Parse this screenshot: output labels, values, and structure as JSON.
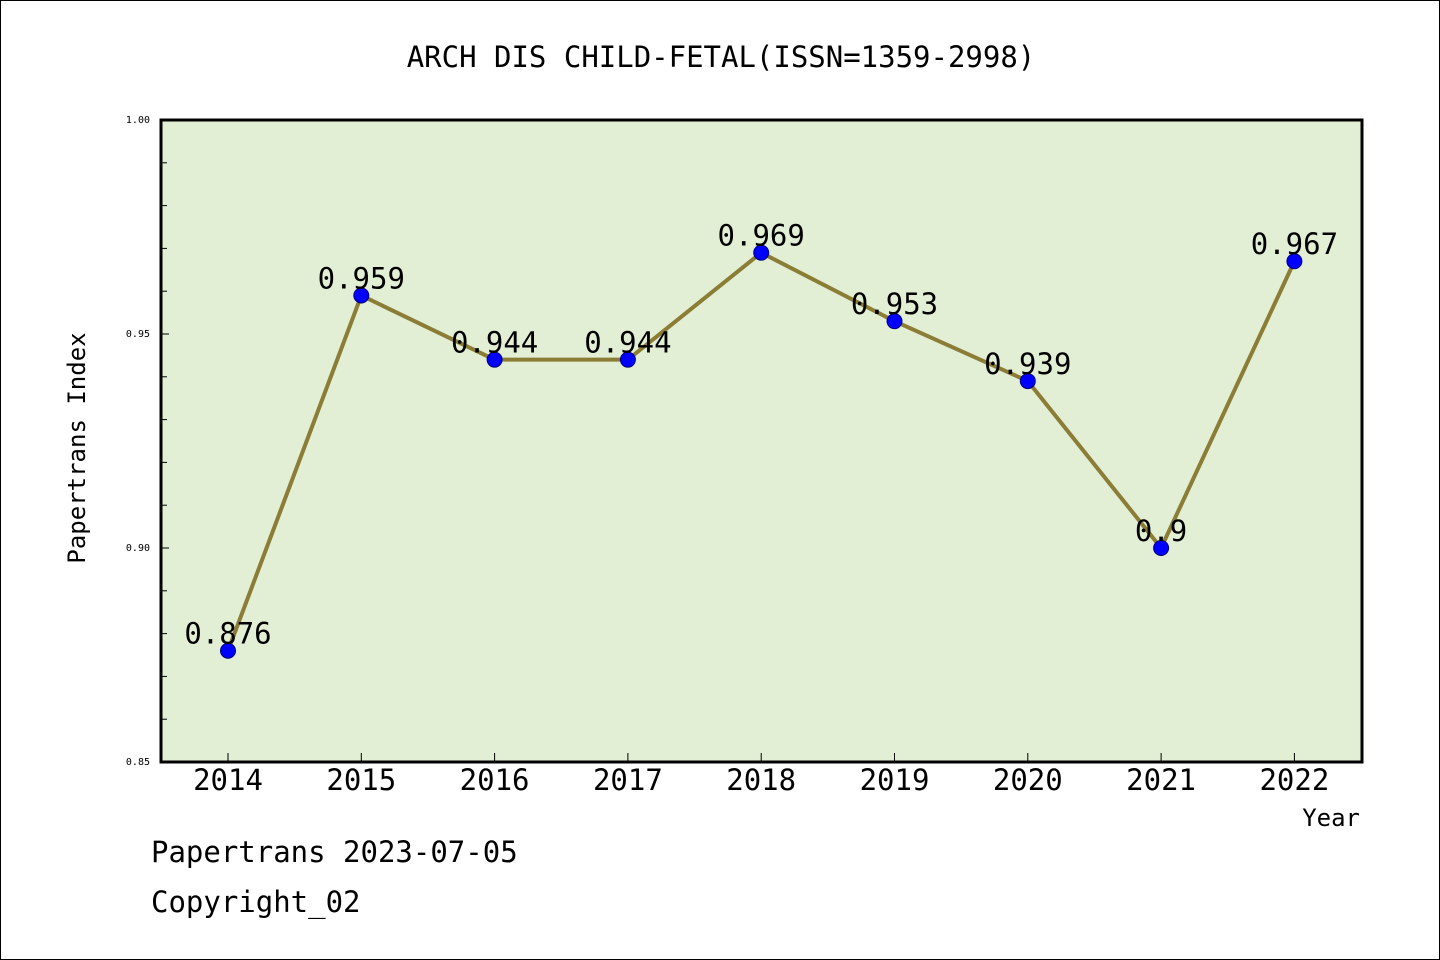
{
  "chart_data": {
    "type": "line",
    "title": "ARCH DIS CHILD-FETAL(ISSN=1359-2998)",
    "xlabel": "Year",
    "ylabel": "Papertrans Index",
    "categories": [
      "2014",
      "2015",
      "2016",
      "2017",
      "2018",
      "2019",
      "2020",
      "2021",
      "2022"
    ],
    "values": [
      0.876,
      0.959,
      0.944,
      0.944,
      0.969,
      0.953,
      0.939,
      0.9,
      0.967
    ],
    "data_labels": [
      "0.876",
      "0.959",
      "0.944",
      "0.944",
      "0.969",
      "0.953",
      "0.939",
      "0.9",
      "0.967"
    ],
    "ylim": [
      0.85,
      1.0
    ],
    "yticks": [
      0.85,
      0.9,
      0.95,
      1.0
    ],
    "ytick_labels": [
      "0.85",
      "0.90",
      "0.95",
      "1.00"
    ],
    "grid": false,
    "colors": {
      "plot_background": "#e2efd5",
      "line": "#8b7d35",
      "marker": "#0000ff"
    }
  },
  "footer": {
    "date_line": "Papertrans 2023-07-05",
    "copyright_line": "Copyright_02"
  }
}
